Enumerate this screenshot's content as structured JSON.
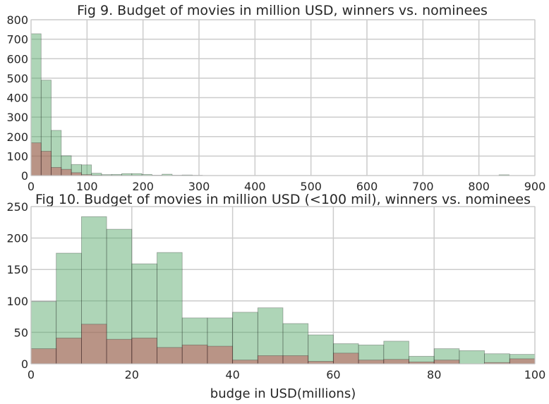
{
  "chart_data": [
    {
      "type": "histogram",
      "title": "Fig 9. Budget of movies in million USD, winners vs. nominees",
      "xlabel": "",
      "ylabel": "",
      "xlim": [
        0,
        900
      ],
      "ylim": [
        0,
        800
      ],
      "x_ticks": [
        0,
        100,
        200,
        300,
        400,
        500,
        600,
        700,
        800,
        900
      ],
      "y_ticks": [
        0,
        100,
        200,
        300,
        400,
        500,
        600,
        700,
        800
      ],
      "grid": true,
      "colors": {
        "nominees": "#55a868",
        "winners": "#c44e52"
      },
      "series": [
        {
          "bins": [
            [
              0,
              18
            ],
            [
              18,
              36
            ],
            [
              36,
              54
            ],
            [
              54,
              72
            ],
            [
              72,
              90
            ],
            [
              90,
              108
            ],
            [
              108,
              126
            ],
            [
              126,
              144
            ],
            [
              144,
              162
            ],
            [
              162,
              180
            ],
            [
              180,
              198
            ],
            [
              198,
              216
            ],
            [
              216,
              234
            ],
            [
              234,
              252
            ],
            [
              252,
              270
            ],
            [
              270,
              288
            ],
            [
              288,
              306
            ],
            [
              836,
              854
            ]
          ],
          "values": [
            728,
            490,
            232,
            102,
            57,
            55,
            12,
            5,
            6,
            10,
            10,
            6,
            2,
            7,
            2,
            3,
            1,
            4
          ]
        },
        {
          "bins": [
            [
              0,
              18
            ],
            [
              18,
              36
            ],
            [
              36,
              54
            ],
            [
              54,
              72
            ],
            [
              72,
              90
            ],
            [
              90,
              108
            ],
            [
              108,
              126
            ],
            [
              126,
              144
            ],
            [
              144,
              162
            ],
            [
              162,
              180
            ],
            [
              180,
              198
            ],
            [
              198,
              216
            ],
            [
              216,
              234
            ],
            [
              234,
              252
            ],
            [
              252,
              270
            ],
            [
              270,
              288
            ],
            [
              288,
              306
            ]
          ],
          "values": [
            168,
            125,
            42,
            32,
            15,
            5,
            2,
            1,
            1,
            1,
            1,
            0,
            0,
            0,
            0,
            0,
            1
          ]
        }
      ]
    },
    {
      "type": "histogram",
      "title": "Fig 10. Budget of movies in million USD (<100 mil), winners vs. nominees",
      "xlabel": "budge in USD(millions)",
      "ylabel": "",
      "xlim": [
        0,
        100
      ],
      "ylim": [
        0,
        250
      ],
      "x_ticks": [
        0,
        20,
        40,
        60,
        80,
        100
      ],
      "y_ticks": [
        0,
        50,
        100,
        150,
        200,
        250
      ],
      "grid": true,
      "bin_width": 5,
      "colors": {
        "nominees": "#55a868",
        "winners": "#c44e52"
      },
      "series": [
        {
          "bin_starts": [
            0,
            5,
            10,
            15,
            20,
            25,
            30,
            35,
            40,
            45,
            50,
            55,
            60,
            65,
            70,
            75,
            80,
            85,
            90,
            95
          ],
          "values": [
            99,
            176,
            234,
            214,
            159,
            177,
            73,
            73,
            82,
            89,
            64,
            46,
            32,
            30,
            36,
            12,
            24,
            21,
            16,
            15
          ]
        },
        {
          "bin_starts": [
            0,
            5,
            10,
            15,
            20,
            25,
            30,
            35,
            40,
            45,
            50,
            55,
            60,
            65,
            70,
            75,
            80,
            85,
            90,
            95
          ],
          "values": [
            24,
            41,
            63,
            39,
            41,
            26,
            30,
            28,
            6,
            13,
            13,
            4,
            17,
            6,
            7,
            3,
            6,
            0,
            2,
            8
          ]
        }
      ]
    }
  ]
}
